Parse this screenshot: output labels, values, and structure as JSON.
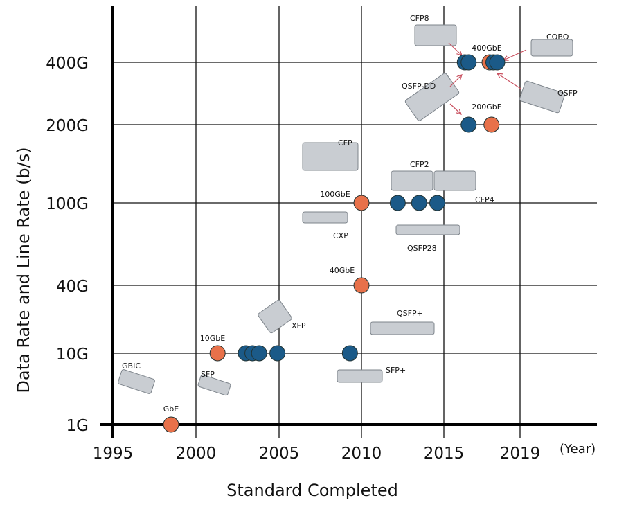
{
  "chart_data": {
    "type": "scatter",
    "title": "",
    "xlabel": "Standard Completed",
    "ylabel": "Data Rate and Line Rate (b/s)",
    "x_unit_label": "(Year)",
    "x_ticks": [
      "1995",
      "2000",
      "2005",
      "2010",
      "2015",
      "2019"
    ],
    "y_levels": [
      "1G",
      "10G",
      "40G",
      "100G",
      "200G",
      "400G"
    ],
    "grid": true,
    "colors": {
      "data_rate": "#e8714a",
      "line_rate": "#1b5a88",
      "highlight_text": "#d03a30",
      "arrow": "#c9505f"
    },
    "points": [
      {
        "x": 1998.5,
        "y": "1G",
        "kind": "data_rate"
      },
      {
        "x": 2001.3,
        "y": "10G",
        "kind": "data_rate"
      },
      {
        "x": 2003.0,
        "y": "10G",
        "kind": "line_rate"
      },
      {
        "x": 2003.4,
        "y": "10G",
        "kind": "line_rate"
      },
      {
        "x": 2003.8,
        "y": "10G",
        "kind": "line_rate"
      },
      {
        "x": 2004.9,
        "y": "10G",
        "kind": "line_rate"
      },
      {
        "x": 2009.3,
        "y": "10G",
        "kind": "line_rate"
      },
      {
        "x": 2010.0,
        "y": "40G",
        "kind": "data_rate"
      },
      {
        "x": 2010.0,
        "y": "100G",
        "kind": "data_rate"
      },
      {
        "x": 2012.2,
        "y": "100G",
        "kind": "line_rate"
      },
      {
        "x": 2013.5,
        "y": "100G",
        "kind": "line_rate"
      },
      {
        "x": 2014.6,
        "y": "100G",
        "kind": "line_rate"
      },
      {
        "x": 2016.3,
        "y": "200G",
        "kind": "line_rate"
      },
      {
        "x": 2017.5,
        "y": "200G",
        "kind": "data_rate"
      },
      {
        "x": 2016.1,
        "y": "400G",
        "kind": "line_rate"
      },
      {
        "x": 2016.3,
        "y": "400G",
        "kind": "line_rate"
      },
      {
        "x": 2017.4,
        "y": "400G",
        "kind": "data_rate"
      },
      {
        "x": 2017.6,
        "y": "400G",
        "kind": "line_rate"
      },
      {
        "x": 2017.8,
        "y": "400G",
        "kind": "line_rate"
      }
    ],
    "annotations": {
      "gbe": "GbE",
      "tengbe": "10GbE",
      "fortygbe": "40GbE",
      "hundredgbe": "100GbE",
      "twohundredgbe": "200GbE",
      "fourhundredgbe": "400GbE"
    },
    "modules": [
      "GBIC",
      "SFP",
      "XFP",
      "SFP+",
      "QSFP+",
      "CFP",
      "CXP",
      "CFP2",
      "CFP4",
      "QSFP28",
      "CFP8",
      "QSFP-DD",
      "COBO",
      "OSFP"
    ]
  }
}
